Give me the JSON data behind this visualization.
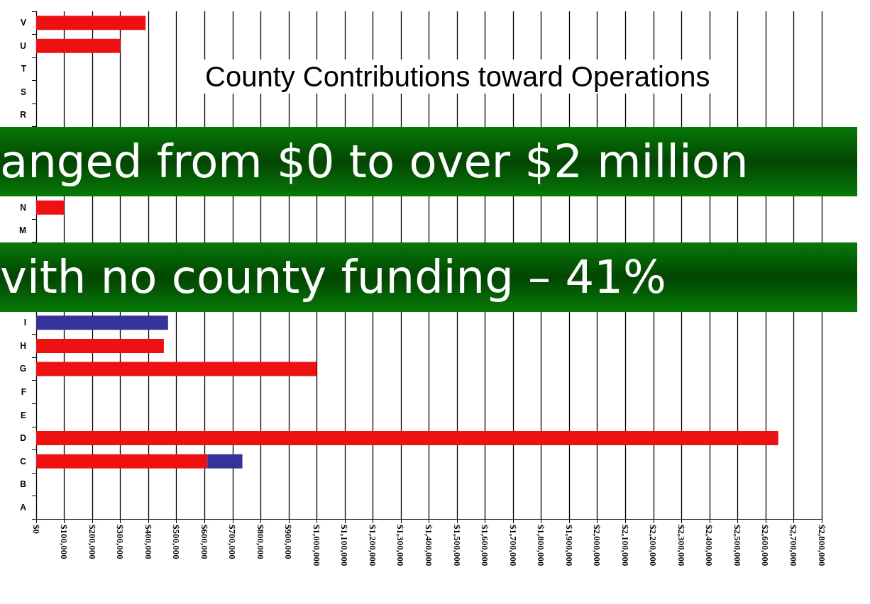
{
  "chart_data": {
    "type": "bar",
    "orientation": "horizontal",
    "stacked": true,
    "title": "County Contributions toward Operations",
    "categories": [
      "V",
      "U",
      "T",
      "S",
      "R",
      null,
      null,
      null,
      "N",
      "M",
      null,
      null,
      null,
      "I",
      "H",
      "G",
      "F",
      "E",
      "D",
      "C",
      "B",
      "A"
    ],
    "series": [
      {
        "color": "#ee1111",
        "values": [
          390000,
          300000,
          0,
          0,
          null,
          null,
          null,
          null,
          100000,
          null,
          null,
          null,
          null,
          0,
          455000,
          1000000,
          0,
          0,
          2645000,
          610000,
          0,
          0
        ]
      },
      {
        "color": "#333399",
        "values": [
          0,
          0,
          0,
          0,
          null,
          null,
          null,
          null,
          0,
          null,
          null,
          null,
          null,
          470000,
          0,
          0,
          0,
          0,
          0,
          125000,
          0,
          0
        ]
      }
    ],
    "xlim": [
      0,
      2800000
    ],
    "xticks": [
      {
        "value": 0,
        "label": "$0"
      },
      {
        "value": 100000,
        "label": "$100,000"
      },
      {
        "value": 200000,
        "label": "$200,000"
      },
      {
        "value": 300000,
        "label": "$300,000"
      },
      {
        "value": 400000,
        "label": "$400,000"
      },
      {
        "value": 500000,
        "label": "$500,000"
      },
      {
        "value": 600000,
        "label": "$600,000"
      },
      {
        "value": 700000,
        "label": "$700,000"
      },
      {
        "value": 800000,
        "label": "$800,000"
      },
      {
        "value": 900000,
        "label": "$900,000"
      },
      {
        "value": 1000000,
        "label": "$1,000,000"
      },
      {
        "value": 1100000,
        "label": "$1,100,000"
      },
      {
        "value": 1200000,
        "label": "$1,200,000"
      },
      {
        "value": 1300000,
        "label": "$1,300,000"
      },
      {
        "value": 1400000,
        "label": "$1,400,000"
      },
      {
        "value": 1500000,
        "label": "$1,500,000"
      },
      {
        "value": 1600000,
        "label": "$1,600,000"
      },
      {
        "value": 1700000,
        "label": "$1,700,000"
      },
      {
        "value": 1800000,
        "label": "$1,800,000"
      },
      {
        "value": 1900000,
        "label": "$1,900,000"
      },
      {
        "value": 2000000,
        "label": "$2,000,000"
      },
      {
        "value": 2100000,
        "label": "$2,100,000"
      },
      {
        "value": 2200000,
        "label": "$2,200,000"
      },
      {
        "value": 2300000,
        "label": "$2,300,000"
      },
      {
        "value": 2400000,
        "label": "$2,400,000"
      },
      {
        "value": 2500000,
        "label": "$2,500,000"
      },
      {
        "value": 2600000,
        "label": "$2,600,000"
      },
      {
        "value": 2700000,
        "label": "$2,700,000"
      },
      {
        "value": 2800000,
        "label": "$2,800,000"
      }
    ],
    "grid": "x",
    "annotations": [
      "anged from $0 to over $2 million",
      "vith no county funding – 41%"
    ]
  }
}
